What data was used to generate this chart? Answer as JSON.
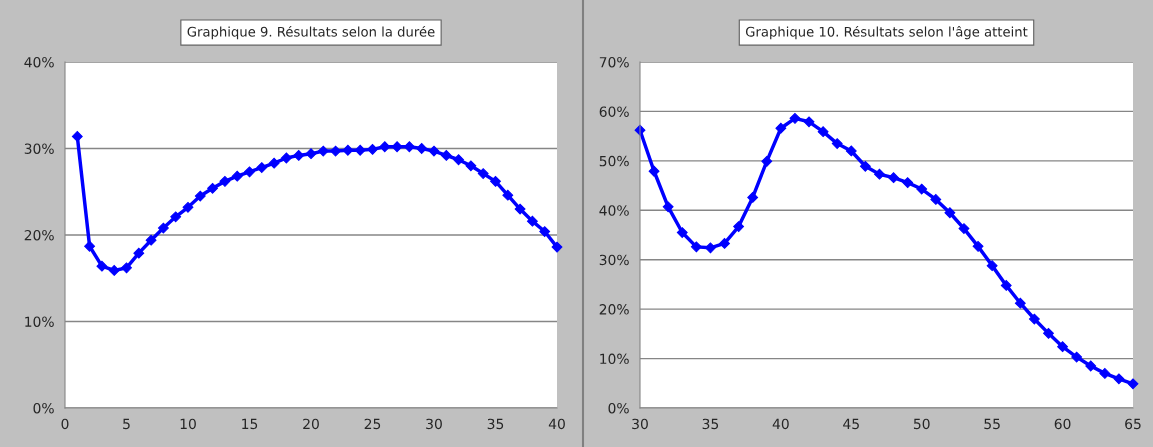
{
  "chart_data": [
    {
      "type": "line",
      "title": "Graphique 9. Résultats selon la durée",
      "x": [
        1,
        2,
        3,
        4,
        5,
        6,
        7,
        8,
        9,
        10,
        11,
        12,
        13,
        14,
        15,
        16,
        17,
        18,
        19,
        20,
        21,
        22,
        23,
        24,
        25,
        26,
        27,
        28,
        29,
        30,
        31,
        32,
        33,
        34,
        35,
        36,
        37,
        38,
        39,
        40
      ],
      "series": [
        {
          "color": "#0000ff",
          "values": [
            31.4,
            18.7,
            16.4,
            15.9,
            16.2,
            17.9,
            19.4,
            20.8,
            22.1,
            23.2,
            24.5,
            25.4,
            26.2,
            26.8,
            27.3,
            27.8,
            28.3,
            28.9,
            29.2,
            29.4,
            29.7,
            29.7,
            29.8,
            29.8,
            29.9,
            30.2,
            30.2,
            30.2,
            30.0,
            29.7,
            29.2,
            28.7,
            28.0,
            27.1,
            26.2,
            24.6,
            23.0,
            21.6,
            20.4,
            18.6
          ]
        }
      ],
      "xlim": [
        0,
        40
      ],
      "xticks": [
        0,
        5,
        10,
        15,
        20,
        25,
        30,
        35,
        40
      ],
      "ylim": [
        0,
        40
      ],
      "yticks": [
        {
          "value": 0,
          "label": "0%"
        },
        {
          "value": 10,
          "label": "10%"
        },
        {
          "value": 20,
          "label": "20%"
        },
        {
          "value": 30,
          "label": "30%"
        },
        {
          "value": 40,
          "label": "40%"
        }
      ],
      "grid": "y",
      "marker": "diamond",
      "line_style": "solid"
    },
    {
      "type": "line",
      "title": "Graphique 10. Résultats selon l'âge atteint",
      "x": [
        30,
        31,
        32,
        33,
        34,
        35,
        36,
        37,
        38,
        39,
        40,
        41,
        42,
        43,
        44,
        45,
        46,
        47,
        48,
        49,
        50,
        51,
        52,
        53,
        54,
        55,
        56,
        57,
        58,
        59,
        60,
        61,
        62,
        63,
        64,
        65
      ],
      "series": [
        {
          "color": "#0000ff",
          "values": [
            56.2,
            47.9,
            40.7,
            35.5,
            32.6,
            32.4,
            33.3,
            36.7,
            42.6,
            49.9,
            56.6,
            58.6,
            57.9,
            55.9,
            53.5,
            52.0,
            48.9,
            47.3,
            46.6,
            45.6,
            44.3,
            42.2,
            39.5,
            36.3,
            32.7,
            28.8,
            24.8,
            21.2,
            18.0,
            15.1,
            12.4,
            10.3,
            8.5,
            7.0,
            5.9,
            4.9
          ]
        }
      ],
      "xlim": [
        30,
        65
      ],
      "xticks": [
        30,
        35,
        40,
        45,
        50,
        55,
        60,
        65
      ],
      "ylim": [
        0,
        70
      ],
      "yticks": [
        {
          "value": 0,
          "label": "0%"
        },
        {
          "value": 10,
          "label": "10%"
        },
        {
          "value": 20,
          "label": "20%"
        },
        {
          "value": 30,
          "label": "30%"
        },
        {
          "value": 40,
          "label": "40%"
        },
        {
          "value": 50,
          "label": "50%"
        },
        {
          "value": 60,
          "label": "60%"
        },
        {
          "value": 70,
          "label": "70%"
        }
      ],
      "grid": "y",
      "marker": "diamond",
      "line_style": "solid"
    }
  ]
}
